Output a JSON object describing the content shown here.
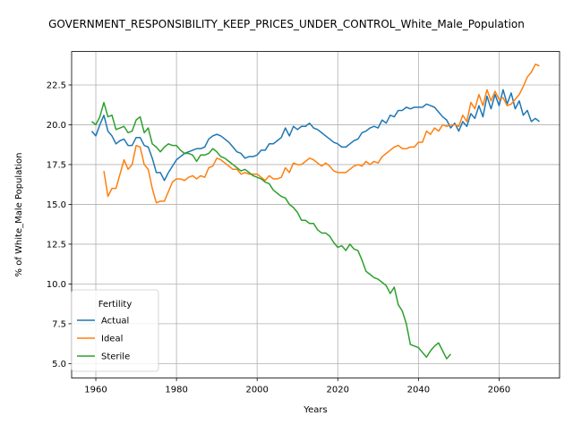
{
  "chart_data": {
    "type": "line",
    "title": "GOVERNMENT_RESPONSIBILITY_KEEP_PRICES_UNDER_CONTROL_White_Male_Population",
    "xlabel": "Years",
    "ylabel": "% of White_Male Population",
    "xlim": [
      1954,
      2075
    ],
    "ylim": [
      4.1,
      24.6
    ],
    "xticks": [
      1960,
      1980,
      2000,
      2020,
      2040,
      2060
    ],
    "yticks": [
      5.0,
      7.5,
      10.0,
      12.5,
      15.0,
      17.5,
      20.0,
      22.5
    ],
    "ytick_labels": [
      "5.0",
      "7.5",
      "10.0",
      "12.5",
      "15.0",
      "17.5",
      "20.0",
      "22.5"
    ],
    "grid": true,
    "legend": {
      "title": "Fertility",
      "placement": "lower-left"
    },
    "series": [
      {
        "name": "Actual",
        "color": "#1f77b4",
        "points": [
          [
            1959,
            19.6
          ],
          [
            1960,
            19.3
          ],
          [
            1961,
            20.0
          ],
          [
            1962,
            20.6
          ],
          [
            1963,
            19.6
          ],
          [
            1964,
            19.3
          ],
          [
            1965,
            18.8
          ],
          [
            1966,
            19.0
          ],
          [
            1967,
            19.1
          ],
          [
            1968,
            18.7
          ],
          [
            1969,
            18.7
          ],
          [
            1970,
            19.2
          ],
          [
            1971,
            19.2
          ],
          [
            1972,
            18.7
          ],
          [
            1973,
            18.6
          ],
          [
            1974,
            17.9
          ],
          [
            1975,
            17.0
          ],
          [
            1976,
            17.0
          ],
          [
            1977,
            16.5
          ],
          [
            1978,
            17.0
          ],
          [
            1979,
            17.4
          ],
          [
            1980,
            17.8
          ],
          [
            1981,
            18.0
          ],
          [
            1982,
            18.2
          ],
          [
            1983,
            18.3
          ],
          [
            1984,
            18.4
          ],
          [
            1985,
            18.5
          ],
          [
            1986,
            18.5
          ],
          [
            1987,
            18.6
          ],
          [
            1988,
            19.1
          ],
          [
            1989,
            19.3
          ],
          [
            1990,
            19.4
          ],
          [
            1991,
            19.3
          ],
          [
            1992,
            19.1
          ],
          [
            1993,
            18.9
          ],
          [
            1994,
            18.6
          ],
          [
            1995,
            18.3
          ],
          [
            1996,
            18.2
          ],
          [
            1997,
            17.9
          ],
          [
            1998,
            18.0
          ],
          [
            1999,
            18.0
          ],
          [
            2000,
            18.1
          ],
          [
            2001,
            18.4
          ],
          [
            2002,
            18.4
          ],
          [
            2003,
            18.8
          ],
          [
            2004,
            18.8
          ],
          [
            2005,
            19.0
          ],
          [
            2006,
            19.2
          ],
          [
            2007,
            19.8
          ],
          [
            2008,
            19.3
          ],
          [
            2009,
            19.9
          ],
          [
            2010,
            19.7
          ],
          [
            2011,
            19.9
          ],
          [
            2012,
            19.9
          ],
          [
            2013,
            20.1
          ],
          [
            2014,
            19.8
          ],
          [
            2015,
            19.7
          ],
          [
            2016,
            19.5
          ],
          [
            2017,
            19.3
          ],
          [
            2018,
            19.1
          ],
          [
            2019,
            18.9
          ],
          [
            2020,
            18.8
          ],
          [
            2021,
            18.6
          ],
          [
            2022,
            18.6
          ],
          [
            2023,
            18.8
          ],
          [
            2024,
            19.0
          ],
          [
            2025,
            19.1
          ],
          [
            2026,
            19.5
          ],
          [
            2027,
            19.6
          ],
          [
            2028,
            19.8
          ],
          [
            2029,
            19.9
          ],
          [
            2030,
            19.8
          ],
          [
            2031,
            20.3
          ],
          [
            2032,
            20.1
          ],
          [
            2033,
            20.6
          ],
          [
            2034,
            20.5
          ],
          [
            2035,
            20.9
          ],
          [
            2036,
            20.9
          ],
          [
            2037,
            21.1
          ],
          [
            2038,
            21.0
          ],
          [
            2039,
            21.1
          ],
          [
            2040,
            21.1
          ],
          [
            2041,
            21.1
          ],
          [
            2042,
            21.3
          ],
          [
            2043,
            21.2
          ],
          [
            2044,
            21.1
          ],
          [
            2045,
            20.8
          ],
          [
            2046,
            20.5
          ],
          [
            2047,
            20.3
          ],
          [
            2048,
            19.8
          ],
          [
            2049,
            20.1
          ],
          [
            2050,
            19.6
          ],
          [
            2051,
            20.2
          ],
          [
            2052,
            19.9
          ],
          [
            2053,
            20.7
          ],
          [
            2054,
            20.4
          ],
          [
            2055,
            21.2
          ],
          [
            2056,
            20.5
          ],
          [
            2057,
            21.8
          ],
          [
            2058,
            21.0
          ],
          [
            2059,
            21.9
          ],
          [
            2060,
            21.2
          ],
          [
            2061,
            22.2
          ],
          [
            2062,
            21.3
          ],
          [
            2063,
            22.0
          ],
          [
            2064,
            21.0
          ],
          [
            2065,
            21.5
          ],
          [
            2066,
            20.6
          ],
          [
            2067,
            20.9
          ],
          [
            2068,
            20.2
          ],
          [
            2069,
            20.4
          ],
          [
            2070,
            20.2
          ]
        ]
      },
      {
        "name": "Ideal",
        "color": "#ff7f0e",
        "points": [
          [
            1962,
            17.1
          ],
          [
            1963,
            15.5
          ],
          [
            1964,
            16.0
          ],
          [
            1965,
            16.0
          ],
          [
            1966,
            16.9
          ],
          [
            1967,
            17.8
          ],
          [
            1968,
            17.2
          ],
          [
            1969,
            17.5
          ],
          [
            1970,
            18.7
          ],
          [
            1971,
            18.6
          ],
          [
            1972,
            17.5
          ],
          [
            1973,
            17.2
          ],
          [
            1974,
            16.0
          ],
          [
            1975,
            15.1
          ],
          [
            1976,
            15.2
          ],
          [
            1977,
            15.2
          ],
          [
            1978,
            15.8
          ],
          [
            1979,
            16.4
          ],
          [
            1980,
            16.6
          ],
          [
            1981,
            16.6
          ],
          [
            1982,
            16.5
          ],
          [
            1983,
            16.7
          ],
          [
            1984,
            16.8
          ],
          [
            1985,
            16.6
          ],
          [
            1986,
            16.8
          ],
          [
            1987,
            16.7
          ],
          [
            1988,
            17.3
          ],
          [
            1989,
            17.4
          ],
          [
            1990,
            17.9
          ],
          [
            1991,
            17.8
          ],
          [
            1992,
            17.6
          ],
          [
            1993,
            17.4
          ],
          [
            1994,
            17.2
          ],
          [
            1995,
            17.2
          ],
          [
            1996,
            16.9
          ],
          [
            1997,
            17.0
          ],
          [
            1998,
            16.9
          ],
          [
            1999,
            16.9
          ],
          [
            2000,
            16.9
          ],
          [
            2001,
            16.7
          ],
          [
            2002,
            16.5
          ],
          [
            2003,
            16.8
          ],
          [
            2004,
            16.6
          ],
          [
            2005,
            16.6
          ],
          [
            2006,
            16.7
          ],
          [
            2007,
            17.3
          ],
          [
            2008,
            17.0
          ],
          [
            2009,
            17.6
          ],
          [
            2010,
            17.5
          ],
          [
            2011,
            17.5
          ],
          [
            2012,
            17.7
          ],
          [
            2013,
            17.9
          ],
          [
            2014,
            17.8
          ],
          [
            2015,
            17.6
          ],
          [
            2016,
            17.4
          ],
          [
            2017,
            17.6
          ],
          [
            2018,
            17.4
          ],
          [
            2019,
            17.1
          ],
          [
            2020,
            17.0
          ],
          [
            2021,
            17.0
          ],
          [
            2022,
            17.0
          ],
          [
            2023,
            17.2
          ],
          [
            2024,
            17.4
          ],
          [
            2025,
            17.5
          ],
          [
            2026,
            17.4
          ],
          [
            2027,
            17.7
          ],
          [
            2028,
            17.5
          ],
          [
            2029,
            17.7
          ],
          [
            2030,
            17.6
          ],
          [
            2031,
            18.0
          ],
          [
            2032,
            18.2
          ],
          [
            2033,
            18.4
          ],
          [
            2034,
            18.6
          ],
          [
            2035,
            18.7
          ],
          [
            2036,
            18.5
          ],
          [
            2037,
            18.5
          ],
          [
            2038,
            18.6
          ],
          [
            2039,
            18.6
          ],
          [
            2040,
            18.9
          ],
          [
            2041,
            18.9
          ],
          [
            2042,
            19.6
          ],
          [
            2043,
            19.4
          ],
          [
            2044,
            19.8
          ],
          [
            2045,
            19.6
          ],
          [
            2046,
            20.0
          ],
          [
            2047,
            19.9
          ],
          [
            2048,
            20.0
          ],
          [
            2049,
            20.0
          ],
          [
            2050,
            19.9
          ],
          [
            2051,
            20.6
          ],
          [
            2052,
            20.2
          ],
          [
            2053,
            21.4
          ],
          [
            2054,
            21.0
          ],
          [
            2055,
            21.9
          ],
          [
            2056,
            21.2
          ],
          [
            2057,
            22.2
          ],
          [
            2058,
            21.5
          ],
          [
            2059,
            22.1
          ],
          [
            2060,
            21.6
          ],
          [
            2061,
            21.7
          ],
          [
            2062,
            21.2
          ],
          [
            2063,
            21.3
          ],
          [
            2064,
            21.6
          ],
          [
            2065,
            21.9
          ],
          [
            2066,
            22.4
          ],
          [
            2067,
            23.0
          ],
          [
            2068,
            23.3
          ],
          [
            2069,
            23.8
          ],
          [
            2070,
            23.7
          ]
        ]
      },
      {
        "name": "Sterile",
        "color": "#2ca02c",
        "points": [
          [
            1959,
            20.2
          ],
          [
            1960,
            20.0
          ],
          [
            1961,
            20.5
          ],
          [
            1962,
            21.4
          ],
          [
            1963,
            20.5
          ],
          [
            1964,
            20.6
          ],
          [
            1965,
            19.7
          ],
          [
            1966,
            19.8
          ],
          [
            1967,
            19.9
          ],
          [
            1968,
            19.5
          ],
          [
            1969,
            19.6
          ],
          [
            1970,
            20.3
          ],
          [
            1971,
            20.5
          ],
          [
            1972,
            19.5
          ],
          [
            1973,
            19.8
          ],
          [
            1974,
            18.8
          ],
          [
            1975,
            18.6
          ],
          [
            1976,
            18.3
          ],
          [
            1977,
            18.6
          ],
          [
            1978,
            18.8
          ],
          [
            1979,
            18.7
          ],
          [
            1980,
            18.7
          ],
          [
            1981,
            18.4
          ],
          [
            1982,
            18.2
          ],
          [
            1983,
            18.2
          ],
          [
            1984,
            18.1
          ],
          [
            1985,
            17.7
          ],
          [
            1986,
            18.1
          ],
          [
            1987,
            18.1
          ],
          [
            1988,
            18.2
          ],
          [
            1989,
            18.5
          ],
          [
            1990,
            18.3
          ],
          [
            1991,
            18.0
          ],
          [
            1992,
            17.9
          ],
          [
            1993,
            17.7
          ],
          [
            1994,
            17.5
          ],
          [
            1995,
            17.3
          ],
          [
            1996,
            17.1
          ],
          [
            1997,
            17.2
          ],
          [
            1998,
            17.0
          ],
          [
            1999,
            16.8
          ],
          [
            2000,
            16.7
          ],
          [
            2001,
            16.6
          ],
          [
            2002,
            16.4
          ],
          [
            2003,
            16.3
          ],
          [
            2004,
            15.9
          ],
          [
            2005,
            15.7
          ],
          [
            2006,
            15.5
          ],
          [
            2007,
            15.4
          ],
          [
            2008,
            15.0
          ],
          [
            2009,
            14.8
          ],
          [
            2010,
            14.5
          ],
          [
            2011,
            14.0
          ],
          [
            2012,
            14.0
          ],
          [
            2013,
            13.8
          ],
          [
            2014,
            13.8
          ],
          [
            2015,
            13.4
          ],
          [
            2016,
            13.2
          ],
          [
            2017,
            13.2
          ],
          [
            2018,
            13.0
          ],
          [
            2019,
            12.6
          ],
          [
            2020,
            12.3
          ],
          [
            2021,
            12.4
          ],
          [
            2022,
            12.1
          ],
          [
            2023,
            12.5
          ],
          [
            2024,
            12.2
          ],
          [
            2025,
            12.1
          ],
          [
            2026,
            11.5
          ],
          [
            2027,
            10.8
          ],
          [
            2028,
            10.6
          ],
          [
            2029,
            10.4
          ],
          [
            2030,
            10.3
          ],
          [
            2031,
            10.1
          ],
          [
            2032,
            9.9
          ],
          [
            2033,
            9.4
          ],
          [
            2034,
            9.8
          ],
          [
            2035,
            8.7
          ],
          [
            2036,
            8.3
          ],
          [
            2037,
            7.5
          ],
          [
            2038,
            6.2
          ],
          [
            2039,
            6.1
          ],
          [
            2040,
            6.0
          ],
          [
            2041,
            5.7
          ],
          [
            2042,
            5.4
          ],
          [
            2043,
            5.8
          ],
          [
            2044,
            6.1
          ],
          [
            2045,
            6.3
          ],
          [
            2046,
            5.8
          ],
          [
            2047,
            5.3
          ],
          [
            2048,
            5.6
          ]
        ]
      }
    ]
  }
}
